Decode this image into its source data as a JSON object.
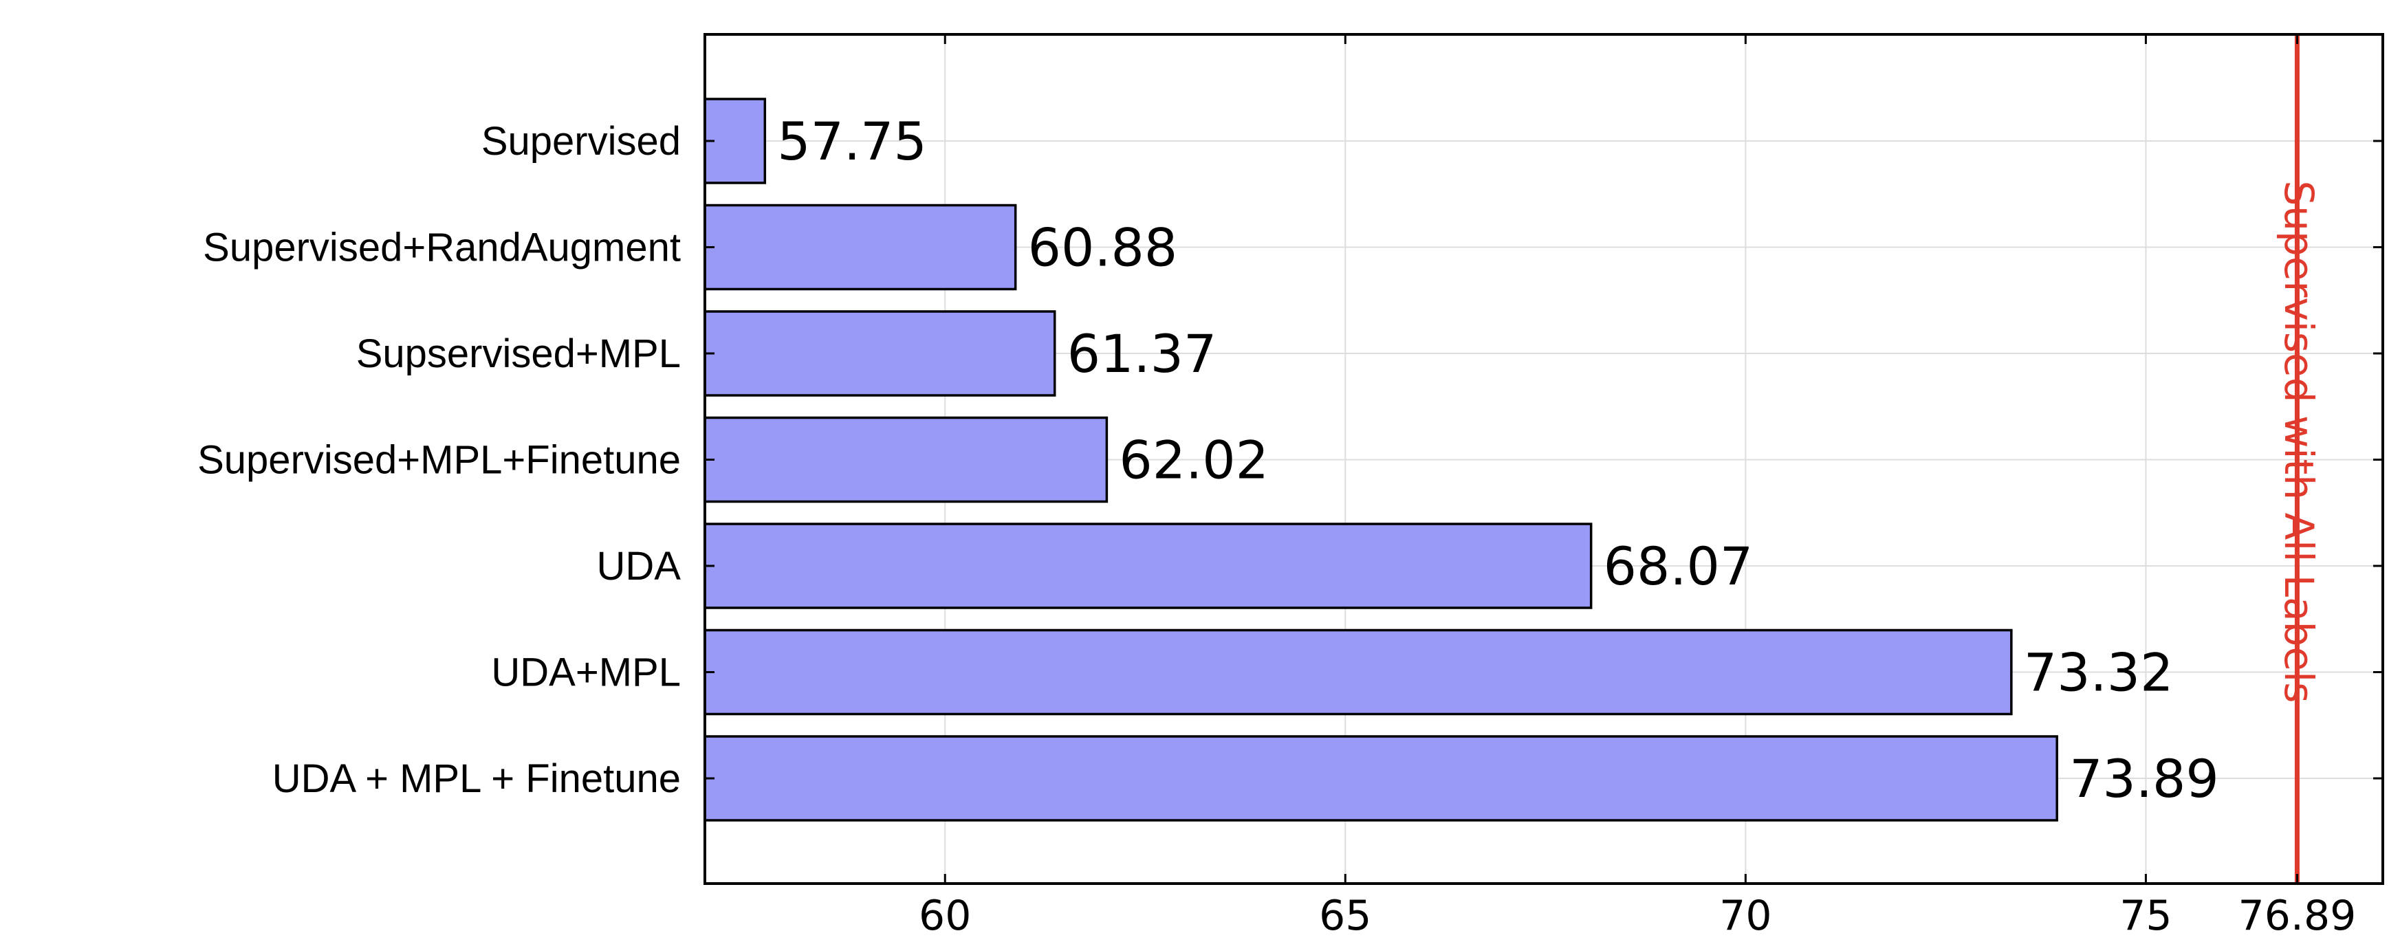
{
  "chart_data": {
    "type": "bar",
    "orientation": "horizontal",
    "categories": [
      "Supervised",
      "Supervised+RandAugment",
      "Supservised+MPL",
      "Supervised+MPL+Finetune",
      "UDA",
      "UDA+MPL",
      "UDA + MPL + Finetune"
    ],
    "values": [
      57.75,
      60.88,
      61.37,
      62.02,
      68.07,
      73.32,
      73.89
    ],
    "value_labels": [
      "57.75",
      "60.88",
      "61.37",
      "62.02",
      "68.07",
      "73.32",
      "73.89"
    ],
    "xlim": [
      57.0,
      77.96
    ],
    "xticks": [
      60,
      65,
      70,
      75,
      76.89
    ],
    "xtick_labels": [
      "60",
      "65",
      "70",
      "75",
      "76.89"
    ],
    "grid": true,
    "bar_color": "#9999f7",
    "bar_edge_color": "#000000",
    "reference_line": {
      "value": 76.89,
      "label": "Supervised with All Labels",
      "color": "#e03a2d"
    },
    "title": "",
    "xlabel": "",
    "ylabel": ""
  }
}
